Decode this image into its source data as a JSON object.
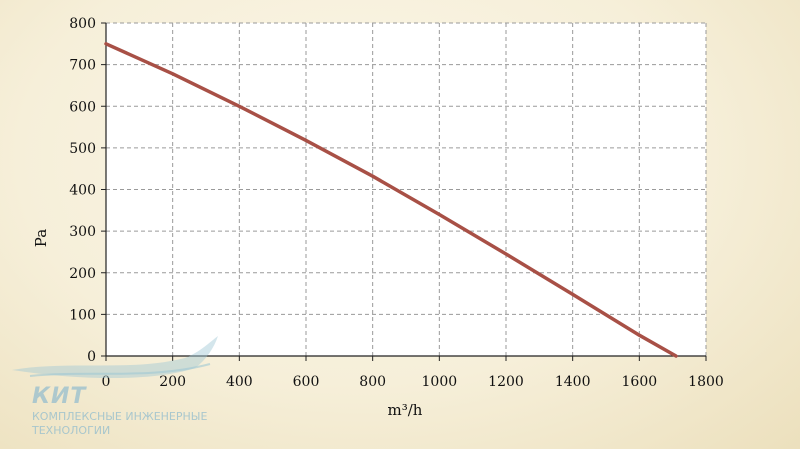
{
  "chart_data": {
    "type": "line",
    "xlabel": "m³/h",
    "ylabel": "Pa",
    "xlim": [
      0,
      1800
    ],
    "ylim": [
      0,
      800
    ],
    "xticks": [
      0,
      200,
      400,
      600,
      800,
      1000,
      1200,
      1400,
      1600,
      1800
    ],
    "yticks": [
      0,
      100,
      200,
      300,
      400,
      500,
      600,
      700,
      800
    ],
    "grid": true,
    "line_color": "#a85046",
    "series": [
      {
        "x": [
          0,
          200,
          400,
          600,
          800,
          1000,
          1200,
          1400,
          1600,
          1710
        ],
        "y": [
          750,
          678,
          600,
          518,
          432,
          340,
          245,
          148,
          50,
          0
        ]
      }
    ]
  },
  "watermark": {
    "brand": "КИТ",
    "line1": "КОМПЛЕКСНЫЕ ИНЖЕНЕРНЫЕ",
    "line2": "ТЕХНОЛОГИИ"
  }
}
